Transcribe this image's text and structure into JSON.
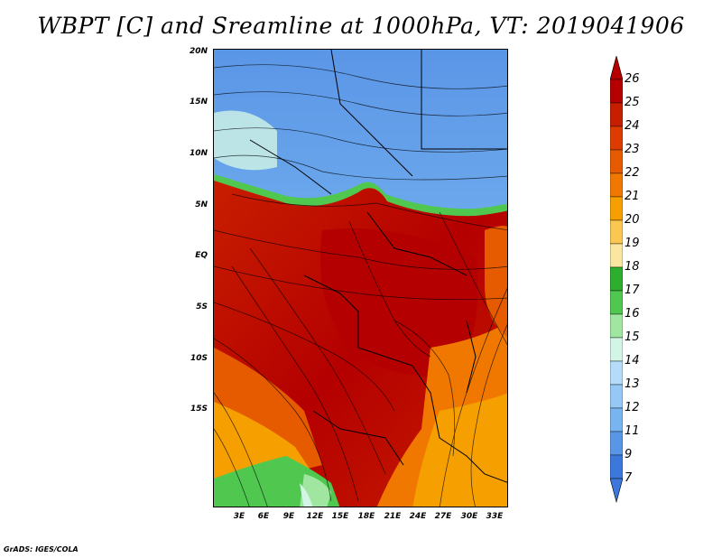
{
  "title": "WBPT [C] and Sreamline at 1000hPa, VT: 2019041906",
  "credit": "GrADS: IGES/COLA",
  "map": {
    "lat_labels": [
      "20N",
      "15N",
      "10N",
      "5N",
      "EQ",
      "5S",
      "10S",
      "15S"
    ],
    "lon_labels": [
      "3E",
      "6E",
      "9E",
      "12E",
      "15E",
      "18E",
      "21E",
      "24E",
      "27E",
      "30E",
      "33E"
    ]
  },
  "colorbar": {
    "labels": [
      "26",
      "25",
      "24",
      "23",
      "22",
      "21",
      "20",
      "19",
      "18",
      "17",
      "16",
      "15",
      "14",
      "13",
      "12",
      "11",
      "9",
      "7"
    ],
    "colors": [
      "#b40000",
      "#c81e00",
      "#dc3c00",
      "#e65a00",
      "#f07800",
      "#f5a000",
      "#fac850",
      "#fae6a0",
      "#2eae2e",
      "#50c850",
      "#a0e6a0",
      "#d2f5e6",
      "#b4dcfa",
      "#96c8f5",
      "#78b4f0",
      "#5a96e6",
      "#3c78dc"
    ]
  }
}
